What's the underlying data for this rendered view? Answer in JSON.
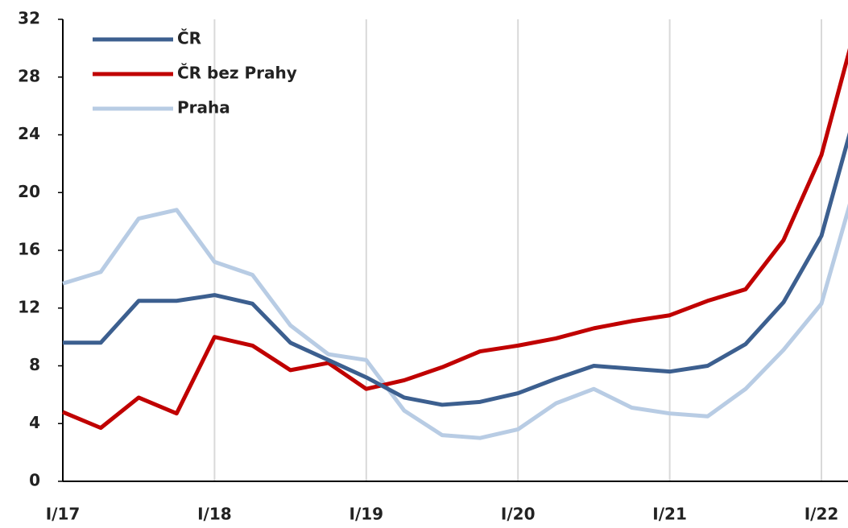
{
  "chart_data": {
    "type": "line",
    "categories": [
      "I/17",
      null,
      null,
      null,
      "I/18",
      null,
      null,
      null,
      "I/19",
      null,
      null,
      null,
      "I/20",
      null,
      null,
      null,
      "I/21",
      null,
      null,
      null,
      "I/22",
      null
    ],
    "series": [
      {
        "name": "ČR",
        "color": "#3c5f8f",
        "values": [
          9.6,
          9.6,
          12.5,
          12.5,
          12.9,
          12.3,
          9.6,
          8.4,
          7.2,
          5.8,
          5.3,
          5.5,
          6.1,
          7.1,
          8.0,
          7.8,
          7.6,
          8.0,
          9.5,
          12.4,
          17.0,
          26.5
        ]
      },
      {
        "name": "ČR bez Prahy",
        "color": "#c00000",
        "values": [
          4.8,
          3.7,
          5.8,
          4.7,
          10.0,
          9.4,
          7.7,
          8.2,
          6.4,
          7.0,
          7.9,
          9.0,
          9.4,
          9.9,
          10.6,
          11.1,
          11.5,
          12.5,
          13.3,
          16.7,
          22.6,
          32.4
        ]
      },
      {
        "name": "Praha",
        "color": "#b8cce4",
        "values": [
          13.7,
          14.5,
          18.2,
          18.8,
          15.2,
          14.3,
          10.8,
          8.8,
          8.4,
          4.9,
          3.2,
          3.0,
          3.6,
          5.4,
          6.4,
          5.1,
          4.7,
          4.5,
          6.4,
          9.1,
          12.3,
          21.5
        ]
      }
    ],
    "ylim": [
      0,
      32
    ],
    "yticks": [
      0,
      4,
      8,
      12,
      16,
      20,
      24,
      28,
      32
    ],
    "grid": "x",
    "legend": "upper left"
  }
}
